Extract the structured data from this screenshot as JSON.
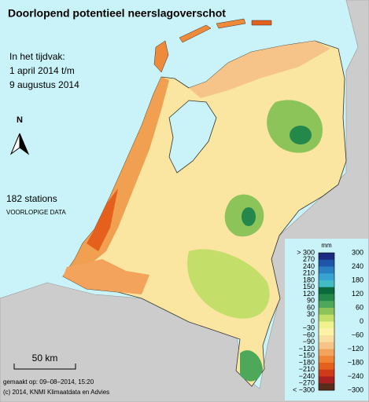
{
  "header": {
    "title": "Doorlopend potentieel neerslagoverschot",
    "period_heading": "In het tijdvak:",
    "period_start": "1 april 2014 t/m",
    "period_end": "9 augustus 2014"
  },
  "north_arrow": "N",
  "stations": "182 stations",
  "status": "VOORLOPIGE DATA",
  "scale_bar": "50 km",
  "footer": {
    "made": "gemaakt op: 09–08–2014, 15:20",
    "copyright": "(c) 2014, KNMI Klimaatdata en Advies"
  },
  "legend": {
    "unit": "mm",
    "labels_left": [
      "> 300",
      "270",
      "240",
      "210",
      "180",
      "150",
      "120",
      "90",
      "60",
      "30",
      "0",
      "−30",
      "−60",
      "−90",
      "−120",
      "−150",
      "−180",
      "−210",
      "−240",
      "−270",
      "< −300"
    ],
    "labels_right": [
      "300",
      "240",
      "180",
      "120",
      "60",
      "0",
      "−60",
      "−120",
      "−180",
      "−240",
      "−300"
    ],
    "colors": [
      "#1b2a80",
      "#1f55a8",
      "#2a7fc0",
      "#37a3d2",
      "#41bcc4",
      "#0b6a3c",
      "#23884a",
      "#4ea85a",
      "#8cc45a",
      "#c4de6a",
      "#eef38e",
      "#fdf2a6",
      "#f8dea0",
      "#f6c488",
      "#f3a35c",
      "#ee8434",
      "#e4601c",
      "#cf3a1a",
      "#a82020",
      "#5a2c1c"
    ]
  }
}
